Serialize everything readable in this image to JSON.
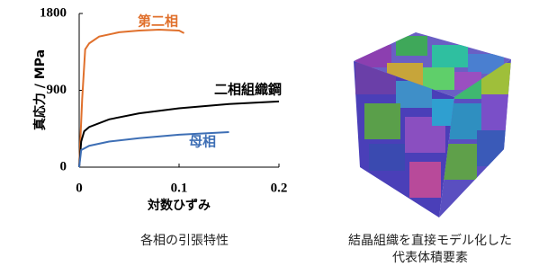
{
  "chart_data": {
    "type": "line",
    "xlabel": "対数ひずみ",
    "ylabel": "真応力 / MPa",
    "xlim": [
      0,
      0.2
    ],
    "ylim": [
      0,
      1800
    ],
    "xticks": [
      0,
      0.1,
      0.2
    ],
    "yticks": [
      0,
      900,
      1800
    ],
    "grid": false,
    "series": [
      {
        "name": "第二相",
        "color": "#e0702c",
        "x": [
          0,
          0.003,
          0.006,
          0.01,
          0.02,
          0.04,
          0.06,
          0.08,
          0.1,
          0.105
        ],
        "values": [
          0,
          800,
          1380,
          1450,
          1530,
          1580,
          1600,
          1610,
          1600,
          1570
        ]
      },
      {
        "name": "二相組織鋼",
        "color": "#000000",
        "x": [
          0,
          0.002,
          0.005,
          0.01,
          0.03,
          0.06,
          0.1,
          0.15,
          0.2
        ],
        "values": [
          0,
          300,
          420,
          470,
          560,
          630,
          690,
          740,
          770
        ]
      },
      {
        "name": "母相",
        "color": "#3e6fb5",
        "x": [
          0,
          0.002,
          0.01,
          0.03,
          0.06,
          0.1,
          0.15
        ],
        "values": [
          0,
          200,
          250,
          300,
          340,
          380,
          410
        ]
      }
    ]
  },
  "captions": {
    "left": "各相の引張特性",
    "right": [
      "結晶組織を直接モデル化した",
      "代表体積要素"
    ]
  }
}
